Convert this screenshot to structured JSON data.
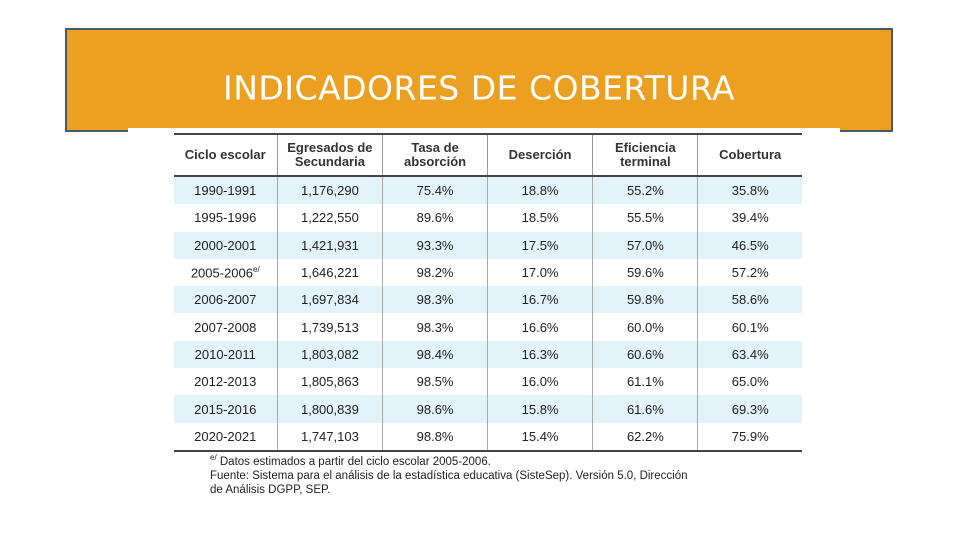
{
  "title": "INDICADORES DE COBERTURA",
  "table": {
    "headers": [
      "Ciclo escolar",
      "Egresados de Secundaria",
      "Tasa de absorción",
      "Deserción",
      "Eficiencia terminal",
      "Cobertura"
    ],
    "rows": [
      {
        "ciclo": "1990-1991",
        "sup": "",
        "egresados": "1,176,290",
        "absorcion": "75.4%",
        "desercion": "18.8%",
        "eficiencia": "55.2%",
        "cobertura": "35.8%"
      },
      {
        "ciclo": "1995-1996",
        "sup": "",
        "egresados": "1,222,550",
        "absorcion": "89.6%",
        "desercion": "18.5%",
        "eficiencia": "55.5%",
        "cobertura": "39.4%"
      },
      {
        "ciclo": "2000-2001",
        "sup": "",
        "egresados": "1,421,931",
        "absorcion": "93.3%",
        "desercion": "17.5%",
        "eficiencia": "57.0%",
        "cobertura": "46.5%"
      },
      {
        "ciclo": "2005-2006",
        "sup": "e/",
        "egresados": "1,646,221",
        "absorcion": "98.2%",
        "desercion": "17.0%",
        "eficiencia": "59.6%",
        "cobertura": "57.2%"
      },
      {
        "ciclo": "2006-2007",
        "sup": "",
        "egresados": "1,697,834",
        "absorcion": "98.3%",
        "desercion": "16.7%",
        "eficiencia": "59.8%",
        "cobertura": "58.6%"
      },
      {
        "ciclo": "2007-2008",
        "sup": "",
        "egresados": "1,739,513",
        "absorcion": "98.3%",
        "desercion": "16.6%",
        "eficiencia": "60.0%",
        "cobertura": "60.1%"
      },
      {
        "ciclo": "2010-2011",
        "sup": "",
        "egresados": "1,803,082",
        "absorcion": "98.4%",
        "desercion": "16.3%",
        "eficiencia": "60.6%",
        "cobertura": "63.4%"
      },
      {
        "ciclo": "2012-2013",
        "sup": "",
        "egresados": "1,805,863",
        "absorcion": "98.5%",
        "desercion": "16.0%",
        "eficiencia": "61.1%",
        "cobertura": "65.0%"
      },
      {
        "ciclo": "2015-2016",
        "sup": "",
        "egresados": "1,800,839",
        "absorcion": "98.6%",
        "desercion": "15.8%",
        "eficiencia": "61.6%",
        "cobertura": "69.3%"
      },
      {
        "ciclo": "2020-2021",
        "sup": "",
        "egresados": "1,747,103",
        "absorcion": "98.8%",
        "desercion": "15.4%",
        "eficiencia": "62.2%",
        "cobertura": "75.9%"
      }
    ]
  },
  "notes": {
    "estimate_marker": "e/",
    "estimate_note": "Datos estimados a partir del ciclo escolar 2005-2006.",
    "source_line1": "Fuente: Sistema para el análisis de la estadística educativa (SisteSep). Versión 5.0, Dirección",
    "source_line2": "de Análisis DGPP, SEP."
  },
  "colors": {
    "title_bg": "#eca022",
    "title_border": "#4a5a6a",
    "row_shade": "#e3f3fa"
  }
}
